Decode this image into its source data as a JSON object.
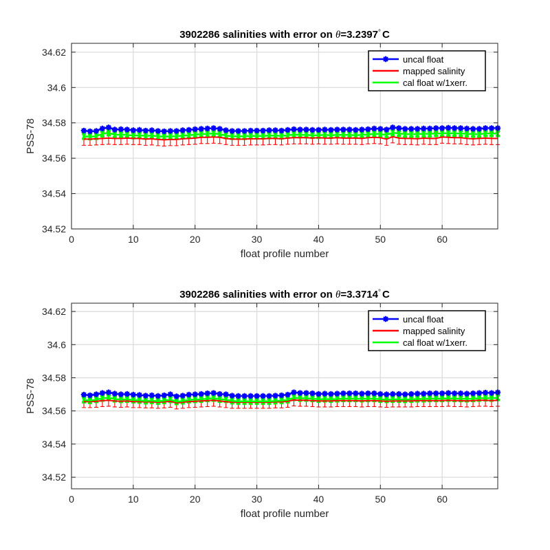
{
  "chart_data": [
    {
      "type": "line",
      "title_prefix": "3902286 salinities with error on ",
      "title_symbol": "θ",
      "title_value": "=3.2397",
      "title_degree": "°",
      "title_unit": "C",
      "xlabel": "float profile number",
      "ylabel": "PSS-78",
      "xlim": [
        0,
        69
      ],
      "ylim": [
        34.52,
        34.625
      ],
      "xticks": [
        0,
        10,
        20,
        30,
        40,
        50,
        60
      ],
      "yticks": [
        "34.52",
        "34.54",
        "34.56",
        "34.58",
        "34.6",
        "34.62"
      ],
      "grid": true,
      "legend_position": "top-right",
      "legend": [
        "uncal float",
        "mapped salinity",
        "cal float w/1xerr."
      ],
      "colors": {
        "uncal": "#0000ff",
        "mapped": "#ff0000",
        "cal": "#00ff00"
      },
      "x": [
        2,
        3,
        4,
        5,
        6,
        7,
        8,
        9,
        10,
        11,
        12,
        13,
        14,
        15,
        16,
        17,
        18,
        19,
        20,
        21,
        22,
        23,
        24,
        25,
        26,
        27,
        28,
        29,
        30,
        31,
        32,
        33,
        34,
        35,
        36,
        37,
        38,
        39,
        40,
        41,
        42,
        43,
        44,
        45,
        46,
        47,
        48,
        49,
        50,
        51,
        52,
        53,
        54,
        55,
        56,
        57,
        58,
        59,
        60,
        61,
        62,
        63,
        64,
        65,
        66,
        67,
        68,
        69
      ],
      "series": [
        {
          "name": "uncal float",
          "values": [
            34.5756,
            34.5752,
            34.5754,
            34.5768,
            34.5774,
            34.5762,
            34.5764,
            34.5762,
            34.5758,
            34.576,
            34.5756,
            34.5758,
            34.5754,
            34.5752,
            34.5754,
            34.5754,
            34.5758,
            34.576,
            34.5764,
            34.5766,
            34.5768,
            34.577,
            34.5766,
            34.5758,
            34.5754,
            34.5754,
            34.5754,
            34.5756,
            34.5756,
            34.5756,
            34.5758,
            34.5758,
            34.5756,
            34.576,
            34.5764,
            34.5762,
            34.5762,
            34.576,
            34.576,
            34.5762,
            34.576,
            34.5762,
            34.5762,
            34.5762,
            34.576,
            34.5762,
            34.5764,
            34.5768,
            34.5766,
            34.5762,
            34.5774,
            34.577,
            34.5766,
            34.5766,
            34.5766,
            34.5768,
            34.5768,
            34.577,
            34.577,
            34.5772,
            34.577,
            34.577,
            34.5768,
            34.5766,
            34.5766,
            34.577,
            34.577,
            34.577
          ]
        },
        {
          "name": "mapped salinity",
          "values": [
            34.5708,
            34.5708,
            34.571,
            34.5712,
            34.5714,
            34.5712,
            34.5712,
            34.5714,
            34.5712,
            34.5712,
            34.5708,
            34.571,
            34.5706,
            34.5704,
            34.5706,
            34.5706,
            34.571,
            34.5712,
            34.5714,
            34.5718,
            34.5718,
            34.572,
            34.5718,
            34.5712,
            34.5708,
            34.5708,
            34.5708,
            34.571,
            34.571,
            34.571,
            34.5712,
            34.5712,
            34.571,
            34.5714,
            34.5716,
            34.5716,
            34.5716,
            34.5714,
            34.5716,
            34.5714,
            34.5714,
            34.5716,
            34.5714,
            34.5714,
            34.5714,
            34.5712,
            34.5716,
            34.5718,
            34.5716,
            34.5708,
            34.5722,
            34.5714,
            34.5712,
            34.5712,
            34.571,
            34.5714,
            34.5712,
            34.5712,
            34.572,
            34.5718,
            34.5716,
            34.5716,
            34.5712,
            34.571,
            34.5712,
            34.5714,
            34.5712,
            34.5712
          ],
          "error": 0.0035
        },
        {
          "name": "cal float w/1xerr.",
          "values": [
            34.5724,
            34.5722,
            34.5724,
            34.5738,
            34.5744,
            34.5732,
            34.5734,
            34.5732,
            34.5728,
            34.573,
            34.5726,
            34.5728,
            34.5724,
            34.5722,
            34.5724,
            34.5724,
            34.5728,
            34.573,
            34.5734,
            34.5736,
            34.5738,
            34.574,
            34.5736,
            34.5728,
            34.5724,
            34.5724,
            34.5724,
            34.5726,
            34.5726,
            34.5726,
            34.5728,
            34.5728,
            34.5726,
            34.573,
            34.5734,
            34.5732,
            34.5732,
            34.573,
            34.573,
            34.5732,
            34.573,
            34.5732,
            34.5732,
            34.5732,
            34.573,
            34.5732,
            34.5734,
            34.5738,
            34.5736,
            34.5732,
            34.5744,
            34.574,
            34.5736,
            34.5736,
            34.5736,
            34.5738,
            34.5738,
            34.574,
            34.574,
            34.5742,
            34.574,
            34.574,
            34.5738,
            34.5736,
            34.5736,
            34.574,
            34.574,
            34.574
          ],
          "error": 0.0014
        }
      ]
    },
    {
      "type": "line",
      "title_prefix": "3902286 salinities with error on ",
      "title_symbol": "θ",
      "title_value": "=3.3714",
      "title_degree": "°",
      "title_unit": "C",
      "xlabel": "float profile number",
      "ylabel": "PSS-78",
      "xlim": [
        0,
        69
      ],
      "ylim": [
        34.513,
        34.625
      ],
      "xticks": [
        0,
        10,
        20,
        30,
        40,
        50,
        60
      ],
      "yticks": [
        "34.52",
        "34.54",
        "34.56",
        "34.58",
        "34.6",
        "34.62"
      ],
      "grid": true,
      "legend_position": "top-right",
      "legend": [
        "uncal float",
        "mapped salinity",
        "cal float w/1xerr."
      ],
      "colors": {
        "uncal": "#0000ff",
        "mapped": "#ff0000",
        "cal": "#00ff00"
      },
      "x": [
        2,
        3,
        4,
        5,
        6,
        7,
        8,
        9,
        10,
        11,
        12,
        13,
        14,
        15,
        16,
        17,
        18,
        19,
        20,
        21,
        22,
        23,
        24,
        25,
        26,
        27,
        28,
        29,
        30,
        31,
        32,
        33,
        34,
        35,
        36,
        37,
        38,
        39,
        40,
        41,
        42,
        43,
        44,
        45,
        46,
        47,
        48,
        49,
        50,
        51,
        52,
        53,
        54,
        55,
        56,
        57,
        58,
        59,
        60,
        61,
        62,
        63,
        64,
        65,
        66,
        67,
        68,
        69
      ],
      "series": [
        {
          "name": "uncal float",
          "values": [
            34.5698,
            34.5694,
            34.57,
            34.5708,
            34.5712,
            34.5704,
            34.57,
            34.5702,
            34.5698,
            34.5696,
            34.5692,
            34.5694,
            34.569,
            34.5694,
            34.57,
            34.5688,
            34.5692,
            34.5698,
            34.57,
            34.5702,
            34.5706,
            34.5708,
            34.5702,
            34.57,
            34.5692,
            34.569,
            34.569,
            34.569,
            34.569,
            34.569,
            34.569,
            34.5692,
            34.5694,
            34.5698,
            34.5712,
            34.5708,
            34.5708,
            34.5706,
            34.5702,
            34.5704,
            34.5702,
            34.5704,
            34.5706,
            34.5706,
            34.5706,
            34.5704,
            34.5706,
            34.5706,
            34.5702,
            34.57,
            34.5702,
            34.5702,
            34.57,
            34.5702,
            34.5704,
            34.5704,
            34.5706,
            34.5706,
            34.5706,
            34.5708,
            34.5706,
            34.5706,
            34.5704,
            34.5706,
            34.5708,
            34.571,
            34.5708,
            34.5712
          ]
        },
        {
          "name": "mapped salinity",
          "values": [
            34.5656,
            34.5656,
            34.5658,
            34.5662,
            34.5664,
            34.566,
            34.5658,
            34.566,
            34.5656,
            34.5656,
            34.5654,
            34.5654,
            34.5652,
            34.5654,
            34.5658,
            34.5648,
            34.5652,
            34.5656,
            34.5658,
            34.566,
            34.5662,
            34.5664,
            34.566,
            34.5656,
            34.5652,
            34.5652,
            34.5652,
            34.5652,
            34.5652,
            34.5652,
            34.5652,
            34.5654,
            34.5654,
            34.5658,
            34.5666,
            34.5664,
            34.5664,
            34.5662,
            34.566,
            34.566,
            34.566,
            34.5662,
            34.5662,
            34.5662,
            34.5662,
            34.566,
            34.5662,
            34.5662,
            34.566,
            34.5658,
            34.566,
            34.566,
            34.566,
            34.566,
            34.5662,
            34.5662,
            34.5662,
            34.5662,
            34.5662,
            34.5664,
            34.5662,
            34.5662,
            34.566,
            34.5662,
            34.5664,
            34.5664,
            34.5662,
            34.5664
          ],
          "error": 0.0036
        },
        {
          "name": "cal float w/1xerr.",
          "values": [
            34.5666,
            34.5662,
            34.5668,
            34.5676,
            34.568,
            34.5672,
            34.5668,
            34.567,
            34.5666,
            34.5664,
            34.566,
            34.5662,
            34.5658,
            34.5662,
            34.5668,
            34.5656,
            34.566,
            34.5666,
            34.5668,
            34.567,
            34.5674,
            34.5676,
            34.567,
            34.5668,
            34.566,
            34.5658,
            34.5658,
            34.5658,
            34.5658,
            34.5658,
            34.5658,
            34.566,
            34.5662,
            34.5666,
            34.568,
            34.5676,
            34.5676,
            34.5674,
            34.567,
            34.5672,
            34.567,
            34.5672,
            34.5674,
            34.5674,
            34.5674,
            34.5672,
            34.5674,
            34.5674,
            34.567,
            34.5668,
            34.567,
            34.567,
            34.5668,
            34.567,
            34.5672,
            34.5672,
            34.5674,
            34.5674,
            34.5674,
            34.5676,
            34.5674,
            34.5674,
            34.5672,
            34.5674,
            34.5676,
            34.5678,
            34.5676,
            34.568
          ],
          "error": 0.0014
        }
      ]
    }
  ]
}
